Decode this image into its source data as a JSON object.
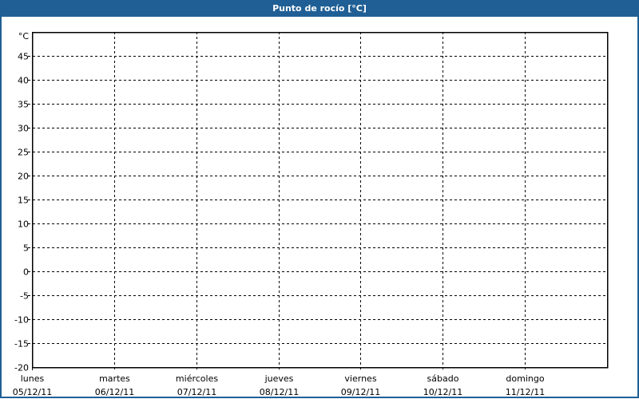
{
  "window": {
    "title": "Punto de rocío [°C]",
    "title_bar_color": "#1f5f95"
  },
  "chart_data": {
    "type": "line",
    "title": "Punto de rocío [°C]",
    "ylabel": "°C",
    "ylim": [
      -20,
      50
    ],
    "yticks": [
      45,
      40,
      35,
      30,
      25,
      20,
      15,
      10,
      5,
      0,
      -5,
      -10,
      -15,
      -20
    ],
    "categories": [
      {
        "day": "lunes",
        "date": "05/12/11"
      },
      {
        "day": "martes",
        "date": "06/12/11"
      },
      {
        "day": "miércoles",
        "date": "07/12/11"
      },
      {
        "day": "jueves",
        "date": "08/12/11"
      },
      {
        "day": "viernes",
        "date": "09/12/11"
      },
      {
        "day": "sábado",
        "date": "10/12/11"
      },
      {
        "day": "domingo",
        "date": "11/12/11"
      }
    ],
    "series": [],
    "grid": true
  }
}
